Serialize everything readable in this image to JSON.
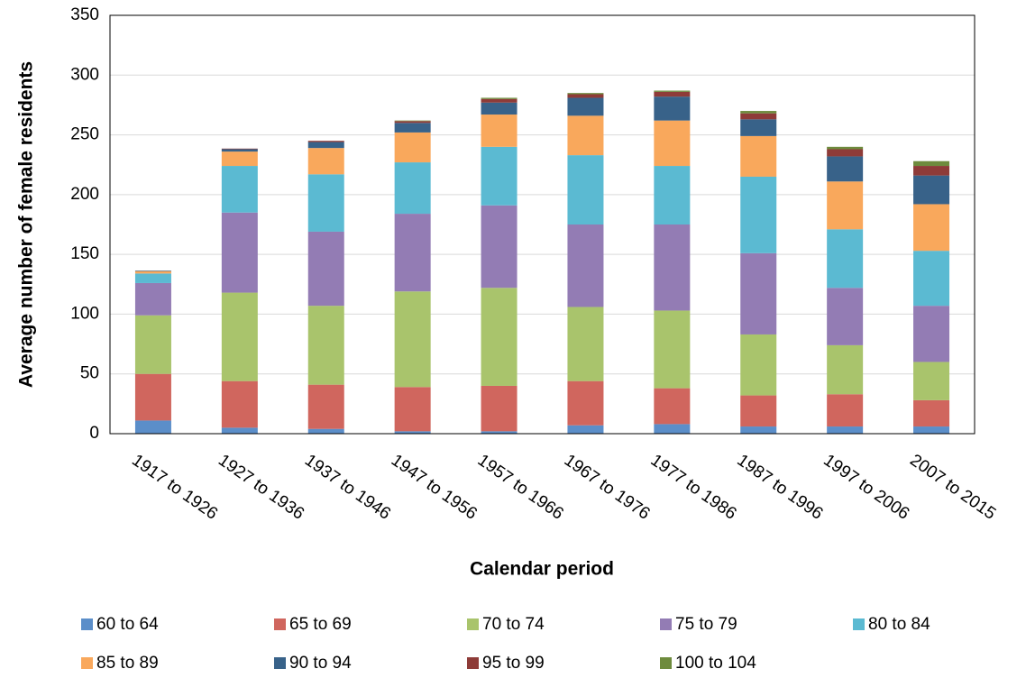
{
  "chart_data": {
    "type": "stacked_bar",
    "x_label": "Calendar period",
    "y_label": "Average number of female residents",
    "categories": [
      "1917 to 1926",
      "1927 to 1936",
      "1937 to 1946",
      "1947 to 1956",
      "1957 to 1966",
      "1967 to 1976",
      "1977 to 1986",
      "1987 to 1996",
      "1997 to 2006",
      "2007 to 2015"
    ],
    "series": [
      {
        "name": "60 to 64",
        "color": "#5b8ec9",
        "values": [
          11,
          5,
          4,
          2,
          2,
          7,
          8,
          6,
          6,
          6
        ]
      },
      {
        "name": "65 to 69",
        "color": "#d0665e",
        "values": [
          39,
          39,
          37,
          37,
          38,
          37,
          30,
          26,
          27,
          22
        ]
      },
      {
        "name": "70 to 74",
        "color": "#a9c46c",
        "values": [
          49,
          74,
          66,
          80,
          82,
          62,
          65,
          51,
          41,
          32
        ]
      },
      {
        "name": "75 to 79",
        "color": "#937cb4",
        "values": [
          27,
          67,
          62,
          65,
          69,
          69,
          72,
          68,
          48,
          47
        ]
      },
      {
        "name": "80 to 84",
        "color": "#5bbad2",
        "values": [
          8,
          39,
          48,
          43,
          49,
          58,
          49,
          64,
          49,
          46
        ]
      },
      {
        "name": "85 to 89",
        "color": "#f9a85c",
        "values": [
          2,
          12,
          22,
          25,
          27,
          33,
          38,
          34,
          40,
          39
        ]
      },
      {
        "name": "90 to 94",
        "color": "#386289",
        "values": [
          0.5,
          2,
          5,
          8,
          10,
          15,
          20,
          14,
          21,
          24
        ]
      },
      {
        "name": "95 to 99",
        "color": "#8e3b38",
        "values": [
          0,
          0.5,
          1,
          1.5,
          3,
          3,
          4,
          5,
          6,
          8
        ]
      },
      {
        "name": "100 to 104",
        "color": "#6e8b3d",
        "values": [
          0,
          0,
          0,
          0.5,
          1,
          1,
          1,
          2,
          2,
          4
        ]
      }
    ],
    "ylim": [
      0,
      350
    ],
    "yticks": [
      0,
      50,
      100,
      150,
      200,
      250,
      300,
      350
    ],
    "grid": true
  }
}
